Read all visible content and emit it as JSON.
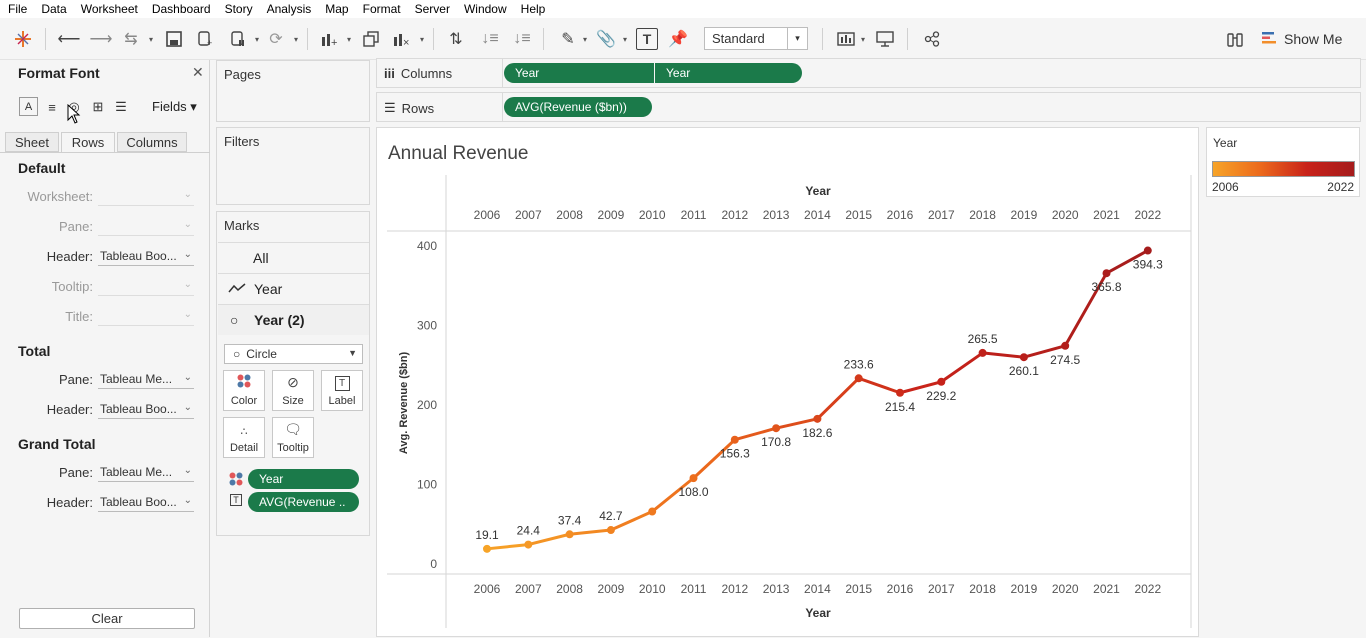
{
  "menu": [
    "File",
    "Data",
    "Worksheet",
    "Dashboard",
    "Story",
    "Analysis",
    "Map",
    "Format",
    "Server",
    "Window",
    "Help"
  ],
  "toolbar": {
    "fit_mode": "Standard",
    "show_me": "Show Me"
  },
  "format_panel": {
    "title": "Format Font",
    "fields_label": "Fields",
    "tabs": [
      "Sheet",
      "Rows",
      "Columns"
    ],
    "active_tab": "Rows",
    "sections": {
      "default": {
        "title": "Default",
        "worksheet_label": "Worksheet:",
        "pane_label": "Pane:",
        "header_label": "Header:",
        "header_value": "Tableau Boo...",
        "tooltip_label": "Tooltip:",
        "title_label": "Title:"
      },
      "total": {
        "title": "Total",
        "pane_label": "Pane:",
        "pane_value": "Tableau Me...",
        "header_label": "Header:",
        "header_value": "Tableau Boo..."
      },
      "grand_total": {
        "title": "Grand Total",
        "pane_label": "Pane:",
        "pane_value": "Tableau Me...",
        "header_label": "Header:",
        "header_value": "Tableau Boo..."
      }
    },
    "clear_label": "Clear"
  },
  "cards": {
    "pages": "Pages",
    "filters": "Filters",
    "marks": {
      "title": "Marks",
      "all": "All",
      "layer1": "Year",
      "layer2": "Year (2)",
      "mark_type": "Circle",
      "buttons": {
        "color": "Color",
        "size": "Size",
        "label": "Label",
        "detail": "Detail",
        "tooltip": "Tooltip"
      },
      "pills": [
        "Year",
        "AVG(Revenue .."
      ]
    }
  },
  "shelves": {
    "columns_label": "Columns",
    "columns_pills": [
      "Year",
      "Year"
    ],
    "rows_label": "Rows",
    "rows_pills": [
      "AVG(Revenue ($bn))"
    ]
  },
  "legend": {
    "title": "Year",
    "min": "2006",
    "max": "2022",
    "start_color": "#f7a428",
    "end_color": "#a51c1c"
  },
  "chart_data": {
    "type": "line",
    "title": "Annual Revenue",
    "top_axis_title": "Year",
    "xlabel": "Year",
    "ylabel": "Avg. Revenue ($bn)",
    "categories": [
      "2006",
      "2007",
      "2008",
      "2009",
      "2010",
      "2011",
      "2012",
      "2013",
      "2014",
      "2015",
      "2016",
      "2017",
      "2018",
      "2019",
      "2020",
      "2021",
      "2022"
    ],
    "values": [
      19.1,
      24.4,
      37.4,
      42.7,
      66.0,
      108.0,
      156.3,
      170.8,
      182.6,
      233.6,
      215.4,
      229.2,
      265.5,
      260.1,
      274.5,
      365.8,
      394.3
    ],
    "labels": [
      "19.1",
      "24.4",
      "37.4",
      "42.7",
      "",
      "108.0",
      "156.3",
      "170.8",
      "182.6",
      "233.6",
      "215.4",
      "229.2",
      "265.5",
      "260.1",
      "274.5",
      "365.8",
      "394.3"
    ],
    "y_ticks": [
      "0",
      "100",
      "200",
      "300",
      "400"
    ],
    "ylim": [
      0,
      400
    ],
    "color_scale": [
      "#f7a428",
      "#ec6a1c",
      "#c8221a",
      "#a51c1c"
    ]
  }
}
